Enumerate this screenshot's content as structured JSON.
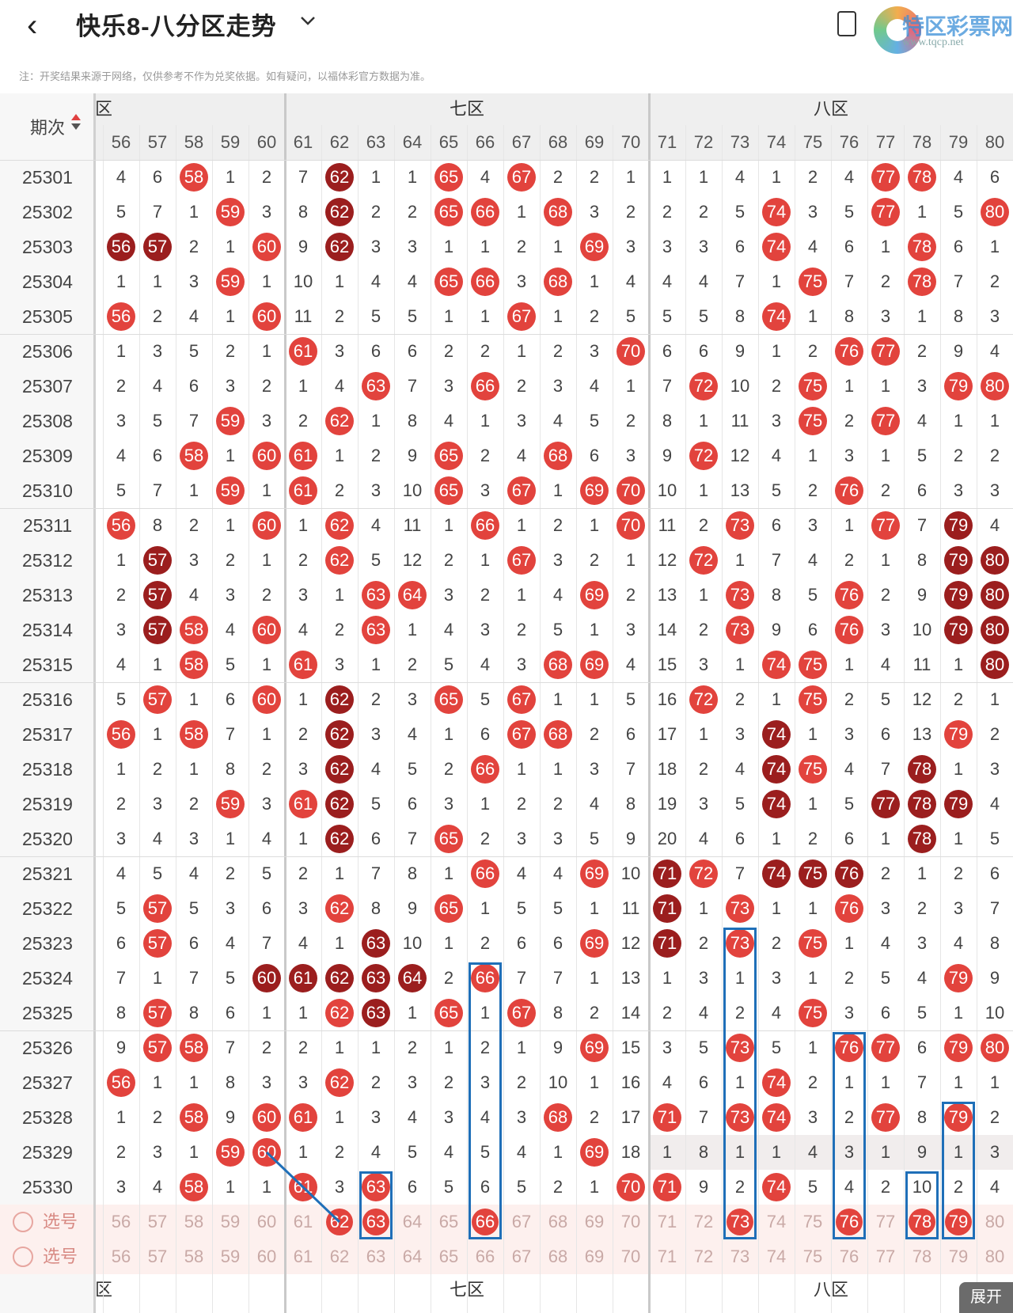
{
  "header": {
    "back_icon": "chevron-left-icon",
    "title": "快乐8-八分区走势",
    "dropdown_icon": "chevron-down-icon",
    "logo_text": "特区彩票网",
    "logo_url": "www.tqcp.net"
  },
  "notice": "注：开奖结果来源于网络，仅供参考不作为兑奖依据。如有疑问，以福体彩官方数据为准。",
  "table": {
    "period_header": "期次",
    "zones": [
      "六区",
      "七区",
      "八区"
    ],
    "zone_labels_visible": [
      "六区",
      "七区",
      "八区"
    ],
    "columns": [
      56,
      57,
      58,
      59,
      60,
      61,
      62,
      63,
      64,
      65,
      66,
      67,
      68,
      69,
      70,
      71,
      72,
      73,
      74,
      75,
      76,
      77,
      78,
      79,
      80
    ],
    "rows": [
      {
        "p": "25301",
        "v": [
          4,
          6,
          58,
          1,
          2,
          7,
          62,
          1,
          1,
          65,
          4,
          67,
          2,
          2,
          1,
          1,
          1,
          4,
          1,
          2,
          4,
          77,
          78,
          4,
          6
        ],
        "h": [
          58,
          62,
          65,
          67,
          77,
          78
        ],
        "d": [
          62
        ]
      },
      {
        "p": "25302",
        "v": [
          5,
          7,
          1,
          59,
          3,
          8,
          62,
          2,
          2,
          65,
          66,
          1,
          68,
          3,
          2,
          2,
          2,
          5,
          74,
          3,
          5,
          77,
          1,
          5,
          80
        ],
        "h": [
          59,
          62,
          65,
          66,
          68,
          74,
          77,
          80
        ],
        "d": [
          62
        ]
      },
      {
        "p": "25303",
        "v": [
          56,
          57,
          2,
          1,
          60,
          9,
          62,
          3,
          3,
          1,
          1,
          2,
          1,
          69,
          3,
          3,
          3,
          6,
          74,
          4,
          6,
          1,
          78,
          6,
          1
        ],
        "h": [
          56,
          57,
          60,
          62,
          69,
          74,
          78
        ],
        "d": [
          56,
          57,
          62
        ]
      },
      {
        "p": "25304",
        "v": [
          1,
          1,
          3,
          59,
          1,
          10,
          1,
          4,
          4,
          65,
          66,
          3,
          68,
          1,
          4,
          4,
          4,
          7,
          1,
          75,
          7,
          2,
          78,
          7,
          2
        ],
        "h": [
          59,
          65,
          66,
          68,
          75,
          78
        ],
        "d": []
      },
      {
        "p": "25305",
        "v": [
          56,
          2,
          4,
          1,
          60,
          11,
          2,
          5,
          5,
          1,
          1,
          67,
          1,
          2,
          5,
          5,
          5,
          8,
          74,
          1,
          8,
          3,
          1,
          8,
          3
        ],
        "h": [
          56,
          60,
          67,
          74
        ],
        "d": []
      },
      {
        "p": "25306",
        "v": [
          1,
          3,
          5,
          2,
          1,
          61,
          3,
          6,
          6,
          2,
          2,
          1,
          2,
          3,
          70,
          6,
          6,
          9,
          1,
          2,
          76,
          77,
          2,
          9,
          4
        ],
        "h": [
          61,
          70,
          76,
          77
        ],
        "d": []
      },
      {
        "p": "25307",
        "v": [
          2,
          4,
          6,
          3,
          2,
          1,
          4,
          63,
          7,
          3,
          66,
          2,
          3,
          4,
          1,
          7,
          72,
          10,
          2,
          75,
          1,
          1,
          3,
          79,
          80
        ],
        "h": [
          63,
          66,
          72,
          75,
          79,
          80
        ],
        "d": []
      },
      {
        "p": "25308",
        "v": [
          3,
          5,
          7,
          59,
          3,
          2,
          62,
          1,
          8,
          4,
          1,
          3,
          4,
          5,
          2,
          8,
          1,
          11,
          3,
          75,
          2,
          77,
          4,
          1,
          1
        ],
        "h": [
          59,
          62,
          75,
          77
        ],
        "d": []
      },
      {
        "p": "25309",
        "v": [
          4,
          6,
          58,
          1,
          60,
          61,
          1,
          2,
          9,
          65,
          2,
          4,
          68,
          6,
          3,
          9,
          72,
          12,
          4,
          1,
          3,
          1,
          5,
          2,
          2
        ],
        "h": [
          58,
          60,
          61,
          65,
          68,
          72
        ],
        "d": []
      },
      {
        "p": "25310",
        "v": [
          5,
          7,
          1,
          59,
          1,
          61,
          2,
          3,
          10,
          65,
          3,
          67,
          1,
          69,
          70,
          10,
          1,
          13,
          5,
          2,
          76,
          2,
          6,
          3,
          3
        ],
        "h": [
          59,
          61,
          65,
          67,
          69,
          70,
          76
        ],
        "d": []
      },
      {
        "p": "25311",
        "v": [
          56,
          8,
          2,
          1,
          60,
          1,
          62,
          4,
          11,
          1,
          66,
          1,
          2,
          1,
          70,
          11,
          2,
          73,
          6,
          3,
          1,
          77,
          7,
          79,
          4
        ],
        "h": [
          56,
          60,
          62,
          66,
          70,
          73,
          77,
          79
        ],
        "d": [
          79
        ]
      },
      {
        "p": "25312",
        "v": [
          1,
          57,
          3,
          2,
          1,
          2,
          62,
          5,
          12,
          2,
          1,
          67,
          3,
          2,
          1,
          12,
          72,
          1,
          7,
          4,
          2,
          1,
          8,
          79,
          80
        ],
        "h": [
          57,
          62,
          67,
          72,
          79,
          80
        ],
        "d": [
          57,
          79,
          80
        ]
      },
      {
        "p": "25313",
        "v": [
          2,
          57,
          4,
          3,
          2,
          3,
          1,
          63,
          64,
          3,
          2,
          1,
          4,
          69,
          2,
          13,
          1,
          73,
          8,
          5,
          76,
          2,
          9,
          79,
          80
        ],
        "h": [
          57,
          63,
          64,
          69,
          73,
          76,
          79,
          80
        ],
        "d": [
          57,
          79,
          80
        ]
      },
      {
        "p": "25314",
        "v": [
          3,
          57,
          58,
          4,
          60,
          4,
          2,
          63,
          1,
          4,
          3,
          2,
          5,
          1,
          3,
          14,
          2,
          73,
          9,
          6,
          76,
          3,
          10,
          79,
          80
        ],
        "h": [
          57,
          58,
          60,
          63,
          73,
          76,
          79,
          80
        ],
        "d": [
          57,
          79,
          80
        ]
      },
      {
        "p": "25315",
        "v": [
          4,
          1,
          58,
          5,
          1,
          61,
          3,
          1,
          2,
          5,
          4,
          3,
          68,
          69,
          4,
          15,
          3,
          1,
          74,
          75,
          1,
          4,
          11,
          1,
          80
        ],
        "h": [
          58,
          61,
          68,
          69,
          74,
          75,
          80
        ],
        "d": [
          80
        ]
      },
      {
        "p": "25316",
        "v": [
          5,
          57,
          1,
          6,
          60,
          1,
          62,
          2,
          3,
          65,
          5,
          67,
          1,
          1,
          5,
          16,
          72,
          2,
          1,
          75,
          2,
          5,
          12,
          2,
          1
        ],
        "h": [
          57,
          60,
          62,
          65,
          67,
          72,
          75
        ],
        "d": [
          62
        ]
      },
      {
        "p": "25317",
        "v": [
          56,
          1,
          58,
          7,
          1,
          2,
          62,
          3,
          4,
          1,
          6,
          67,
          68,
          2,
          6,
          17,
          1,
          3,
          74,
          1,
          3,
          6,
          13,
          79,
          2
        ],
        "h": [
          56,
          58,
          62,
          67,
          68,
          74,
          79
        ],
        "d": [
          62,
          74
        ]
      },
      {
        "p": "25318",
        "v": [
          1,
          2,
          1,
          8,
          2,
          3,
          62,
          4,
          5,
          2,
          66,
          1,
          1,
          3,
          7,
          18,
          2,
          4,
          74,
          75,
          4,
          7,
          78,
          1,
          3
        ],
        "h": [
          62,
          66,
          74,
          75,
          78
        ],
        "d": [
          62,
          74,
          78
        ]
      },
      {
        "p": "25319",
        "v": [
          2,
          3,
          2,
          59,
          3,
          61,
          62,
          5,
          6,
          3,
          1,
          2,
          2,
          4,
          8,
          19,
          3,
          5,
          74,
          1,
          5,
          77,
          78,
          79,
          4
        ],
        "h": [
          59,
          61,
          62,
          74,
          77,
          78,
          79
        ],
        "d": [
          62,
          74,
          77,
          78,
          79
        ]
      },
      {
        "p": "25320",
        "v": [
          3,
          4,
          3,
          1,
          4,
          1,
          62,
          6,
          7,
          65,
          2,
          3,
          3,
          5,
          9,
          20,
          4,
          6,
          1,
          2,
          6,
          1,
          78,
          1,
          5
        ],
        "h": [
          62,
          65,
          78
        ],
        "d": [
          62,
          78
        ]
      },
      {
        "p": "25321",
        "v": [
          4,
          5,
          4,
          2,
          5,
          2,
          1,
          7,
          8,
          1,
          66,
          4,
          4,
          69,
          10,
          71,
          72,
          7,
          74,
          75,
          76,
          2,
          1,
          2,
          6
        ],
        "h": [
          66,
          69,
          71,
          72,
          74,
          75,
          76
        ],
        "d": [
          71,
          74,
          75,
          76
        ]
      },
      {
        "p": "25322",
        "v": [
          5,
          57,
          5,
          3,
          6,
          3,
          62,
          8,
          9,
          65,
          1,
          5,
          5,
          1,
          11,
          71,
          1,
          73,
          1,
          1,
          76,
          3,
          2,
          3,
          7
        ],
        "h": [
          57,
          62,
          65,
          71,
          73,
          76
        ],
        "d": [
          71
        ]
      },
      {
        "p": "25323",
        "v": [
          6,
          57,
          6,
          4,
          7,
          4,
          1,
          63,
          10,
          1,
          2,
          6,
          6,
          69,
          12,
          71,
          2,
          73,
          2,
          75,
          1,
          4,
          3,
          4,
          8
        ],
        "h": [
          57,
          63,
          69,
          71,
          73,
          75
        ],
        "d": [
          63,
          71
        ]
      },
      {
        "p": "25324",
        "v": [
          7,
          1,
          7,
          5,
          60,
          61,
          62,
          63,
          64,
          2,
          66,
          7,
          7,
          1,
          13,
          1,
          3,
          1,
          3,
          1,
          2,
          5,
          4,
          79,
          9
        ],
        "h": [
          60,
          61,
          62,
          63,
          64,
          66,
          79
        ],
        "d": [
          60,
          61,
          62,
          63,
          64
        ]
      },
      {
        "p": "25325",
        "v": [
          8,
          57,
          8,
          6,
          1,
          1,
          62,
          63,
          1,
          65,
          1,
          67,
          8,
          2,
          14,
          2,
          4,
          2,
          4,
          75,
          3,
          6,
          5,
          1,
          10
        ],
        "h": [
          57,
          62,
          63,
          65,
          67,
          75
        ],
        "d": [
          63
        ]
      },
      {
        "p": "25326",
        "v": [
          9,
          57,
          58,
          7,
          2,
          2,
          1,
          1,
          2,
          1,
          2,
          1,
          9,
          69,
          15,
          3,
          5,
          73,
          5,
          1,
          76,
          77,
          6,
          79,
          80
        ],
        "h": [
          57,
          58,
          69,
          73,
          76,
          77,
          79,
          80
        ],
        "d": []
      },
      {
        "p": "25327",
        "v": [
          56,
          1,
          1,
          8,
          3,
          3,
          62,
          2,
          3,
          2,
          3,
          2,
          10,
          1,
          16,
          4,
          6,
          1,
          74,
          2,
          1,
          1,
          7,
          1,
          1
        ],
        "h": [
          56,
          62,
          74
        ],
        "d": []
      },
      {
        "p": "25328",
        "v": [
          1,
          2,
          58,
          9,
          60,
          61,
          1,
          3,
          4,
          3,
          4,
          3,
          68,
          2,
          17,
          71,
          7,
          73,
          74,
          3,
          2,
          77,
          8,
          79,
          2
        ],
        "h": [
          58,
          60,
          61,
          68,
          71,
          73,
          74,
          77,
          79
        ],
        "d": []
      },
      {
        "p": "25329",
        "v": [
          2,
          3,
          1,
          59,
          60,
          1,
          2,
          4,
          5,
          4,
          5,
          4,
          1,
          69,
          18,
          1,
          8,
          1,
          1,
          4,
          3,
          1,
          9,
          1,
          3
        ],
        "h": [
          59,
          60,
          69
        ],
        "d": []
      },
      {
        "p": "25330",
        "v": [
          3,
          4,
          58,
          1,
          1,
          61,
          3,
          63,
          6,
          5,
          6,
          5,
          2,
          1,
          70,
          71,
          9,
          2,
          74,
          5,
          4,
          2,
          10,
          2,
          4
        ],
        "h": [
          58,
          61,
          63,
          70,
          71,
          74
        ],
        "d": []
      }
    ],
    "select_label": "选号",
    "selected_row1": [
      62,
      63,
      66,
      73,
      76,
      78,
      79
    ],
    "expand_label": "展开"
  }
}
